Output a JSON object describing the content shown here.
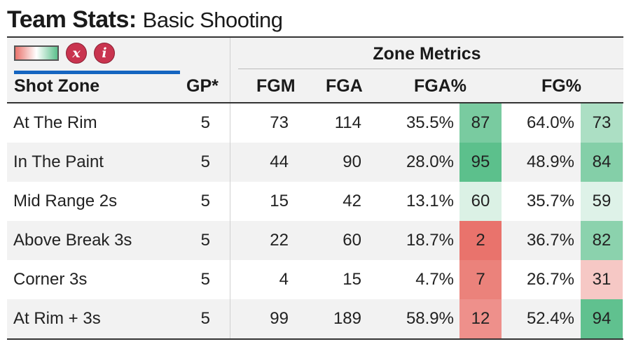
{
  "title": {
    "bold": "Team Stats:",
    "light": "Basic Shooting"
  },
  "toolbar": {
    "legend_icon": "color-scale-legend-icon",
    "clear_label": "x",
    "info_label": "i"
  },
  "table": {
    "group_label": "Zone Metrics",
    "columns": {
      "zone": "Shot Zone",
      "gp": "GP*",
      "fgm": "FGM",
      "fga": "FGA",
      "fga_pct": "FGA%",
      "fg_pct": "FG%"
    },
    "rows": [
      {
        "zone": "At The Rim",
        "gp": "5",
        "fgm": "73",
        "fga": "114",
        "fga_pct": "35.5%",
        "fga_rank": 87,
        "fg_pct": "64.0%",
        "fg_rank": 73
      },
      {
        "zone": "In The Paint",
        "gp": "5",
        "fgm": "44",
        "fga": "90",
        "fga_pct": "28.0%",
        "fga_rank": 95,
        "fg_pct": "48.9%",
        "fg_rank": 84
      },
      {
        "zone": "Mid Range 2s",
        "gp": "5",
        "fgm": "15",
        "fga": "42",
        "fga_pct": "13.1%",
        "fga_rank": 60,
        "fg_pct": "35.7%",
        "fg_rank": 59
      },
      {
        "zone": "Above Break 3s",
        "gp": "5",
        "fgm": "22",
        "fga": "60",
        "fga_pct": "18.7%",
        "fga_rank": 2,
        "fg_pct": "36.7%",
        "fg_rank": 82
      },
      {
        "zone": "Corner 3s",
        "gp": "5",
        "fgm": "4",
        "fga": "15",
        "fga_pct": "4.7%",
        "fga_rank": 7,
        "fg_pct": "26.7%",
        "fg_rank": 31
      },
      {
        "zone": "At Rim + 3s",
        "gp": "5",
        "fgm": "99",
        "fga": "189",
        "fga_pct": "58.9%",
        "fga_rank": 12,
        "fg_pct": "52.4%",
        "fg_rank": 94
      }
    ]
  },
  "colors": {
    "low": "#e9736c",
    "mid": "#ffffff",
    "high": "#5cc08c",
    "button": "#c9344f",
    "underline": "#1565c0"
  }
}
